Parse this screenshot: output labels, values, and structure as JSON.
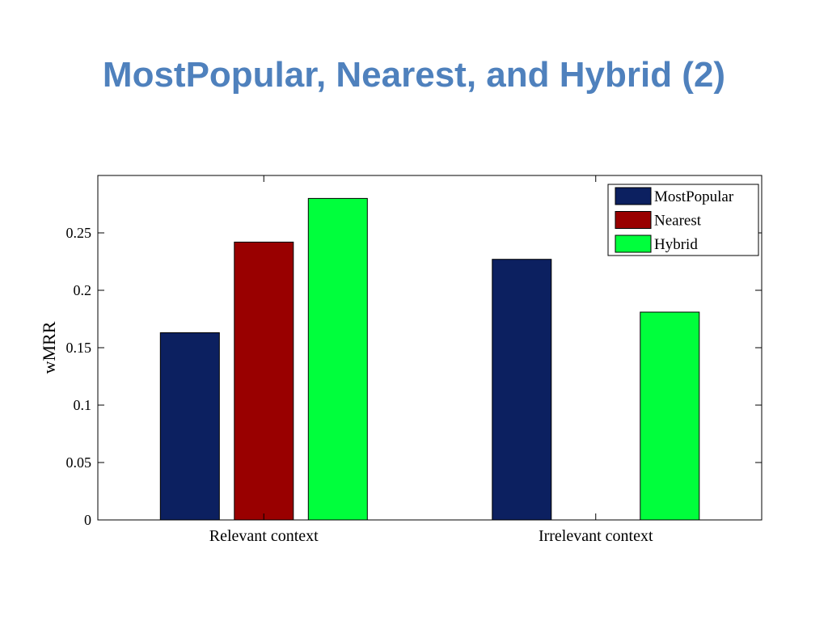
{
  "slide": {
    "title": "MostPopular, Nearest, and Hybrid (2)"
  },
  "chart_data": {
    "type": "bar",
    "title": "",
    "xlabel": "",
    "ylabel": "wMRR",
    "categories": [
      "Relevant context",
      "Irrelevant context"
    ],
    "series": [
      {
        "name": "MostPopular",
        "color": "#0c2060",
        "values": [
          0.163,
          0.227
        ]
      },
      {
        "name": "Nearest",
        "color": "#990000",
        "values": [
          0.242,
          null
        ]
      },
      {
        "name": "Hybrid",
        "color": "#00ff3c",
        "values": [
          0.28,
          0.181
        ]
      }
    ],
    "ylim": [
      0,
      0.3
    ],
    "yticks": [
      0,
      0.05,
      0.1,
      0.15,
      0.2,
      0.25
    ],
    "ytick_labels": [
      "0",
      "0.05",
      "0.1",
      "0.15",
      "0.2",
      "0.25"
    ],
    "grid": false,
    "legend_position": "top-right"
  }
}
